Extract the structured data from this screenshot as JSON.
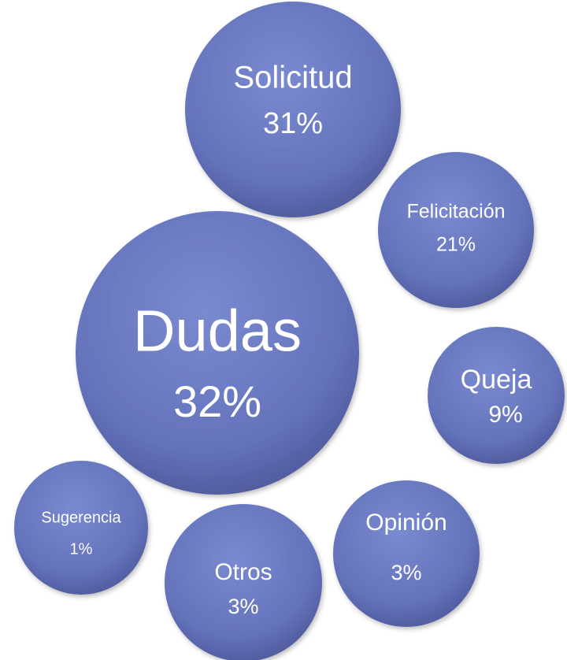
{
  "nodes": [
    {
      "label": "Solicitud",
      "value": "31%"
    },
    {
      "label": "Felicitación",
      "value": "21%"
    },
    {
      "label": "Dudas",
      "value": "32%"
    },
    {
      "label": "Queja",
      "value": "9%"
    },
    {
      "label": "Opinión",
      "value": "3%"
    },
    {
      "label": "Otros",
      "value": "3%"
    },
    {
      "label": "Sugerencia",
      "value": "1%"
    }
  ]
}
